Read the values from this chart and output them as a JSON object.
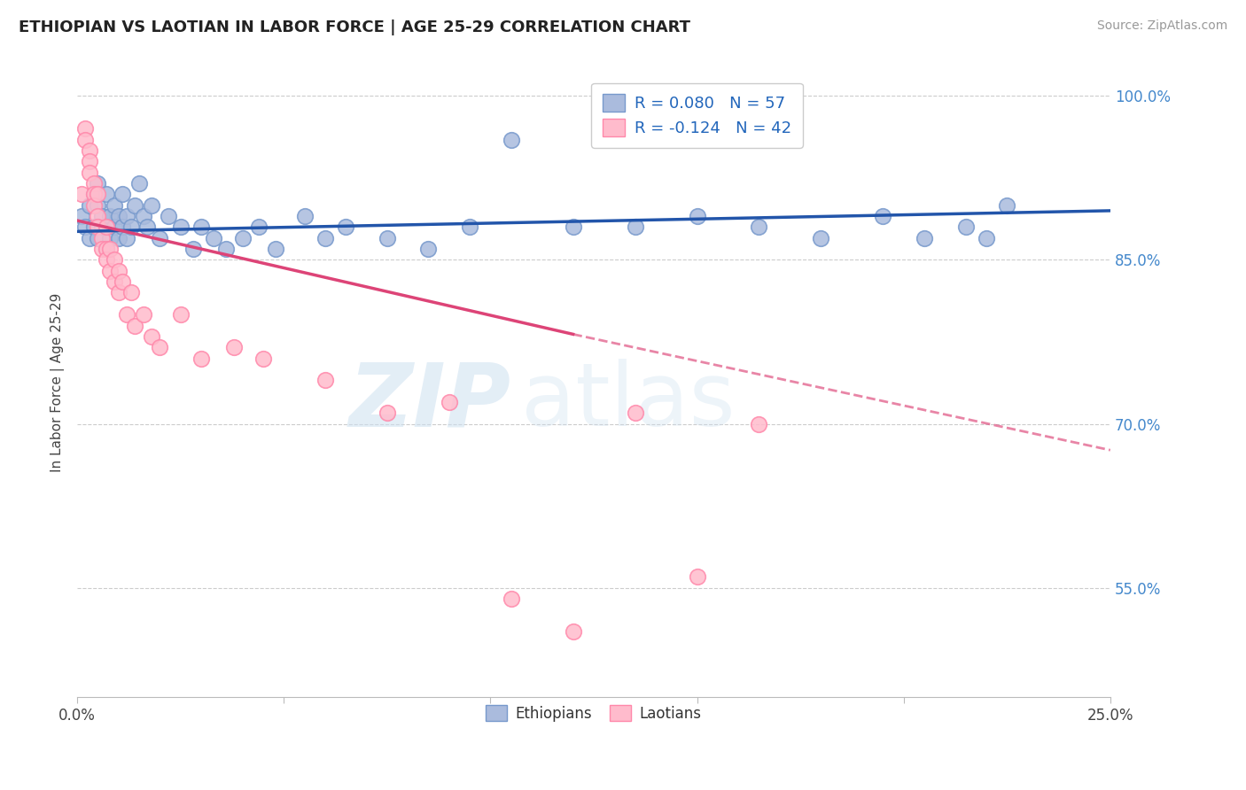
{
  "title": "ETHIOPIAN VS LAOTIAN IN LABOR FORCE | AGE 25-29 CORRELATION CHART",
  "source": "Source: ZipAtlas.com",
  "ylabel": "In Labor Force | Age 25-29",
  "xlim": [
    0.0,
    0.25
  ],
  "ylim": [
    0.45,
    1.025
  ],
  "ytick_positions": [
    1.0,
    0.85,
    0.7,
    0.55
  ],
  "ytick_labels": [
    "100.0%",
    "85.0%",
    "70.0%",
    "55.0%"
  ],
  "blue_color": "#aabbdd",
  "blue_edge_color": "#7799cc",
  "pink_color": "#ffbbcc",
  "pink_edge_color": "#ff88aa",
  "trendline_blue": "#2255aa",
  "trendline_pink": "#dd4477",
  "legend_blue_text": "R = 0.080   N = 57",
  "legend_pink_text": "R = -0.124   N = 42",
  "watermark_zip": "ZIP",
  "watermark_atlas": "atlas",
  "blue_trend_x0": 0.0,
  "blue_trend_y0": 0.876,
  "blue_trend_x1": 0.25,
  "blue_trend_y1": 0.895,
  "pink_trend_x0": 0.0,
  "pink_trend_y0": 0.886,
  "pink_trend_x1_solid": 0.12,
  "pink_trend_y1_solid": 0.782,
  "pink_trend_x1_dash": 0.25,
  "pink_trend_y1_dash": 0.676,
  "blue_points_x": [
    0.001,
    0.002,
    0.003,
    0.003,
    0.004,
    0.004,
    0.005,
    0.005,
    0.005,
    0.006,
    0.006,
    0.007,
    0.007,
    0.007,
    0.008,
    0.008,
    0.009,
    0.009,
    0.01,
    0.01,
    0.011,
    0.011,
    0.012,
    0.012,
    0.013,
    0.014,
    0.015,
    0.016,
    0.017,
    0.018,
    0.02,
    0.022,
    0.025,
    0.028,
    0.03,
    0.033,
    0.036,
    0.04,
    0.044,
    0.048,
    0.055,
    0.06,
    0.065,
    0.075,
    0.085,
    0.095,
    0.105,
    0.12,
    0.135,
    0.15,
    0.165,
    0.18,
    0.195,
    0.205,
    0.215,
    0.22,
    0.225
  ],
  "blue_points_y": [
    0.89,
    0.88,
    0.9,
    0.87,
    0.91,
    0.88,
    0.87,
    0.9,
    0.92,
    0.88,
    0.89,
    0.86,
    0.88,
    0.91,
    0.87,
    0.89,
    0.88,
    0.9,
    0.87,
    0.89,
    0.88,
    0.91,
    0.87,
    0.89,
    0.88,
    0.9,
    0.92,
    0.89,
    0.88,
    0.9,
    0.87,
    0.89,
    0.88,
    0.86,
    0.88,
    0.87,
    0.86,
    0.87,
    0.88,
    0.86,
    0.89,
    0.87,
    0.88,
    0.87,
    0.86,
    0.88,
    0.96,
    0.88,
    0.88,
    0.89,
    0.88,
    0.87,
    0.89,
    0.87,
    0.88,
    0.87,
    0.9
  ],
  "pink_points_x": [
    0.001,
    0.002,
    0.002,
    0.003,
    0.003,
    0.003,
    0.004,
    0.004,
    0.004,
    0.005,
    0.005,
    0.005,
    0.006,
    0.006,
    0.007,
    0.007,
    0.007,
    0.008,
    0.008,
    0.009,
    0.009,
    0.01,
    0.01,
    0.011,
    0.012,
    0.013,
    0.014,
    0.016,
    0.018,
    0.02,
    0.025,
    0.03,
    0.038,
    0.045,
    0.06,
    0.075,
    0.09,
    0.105,
    0.12,
    0.135,
    0.15,
    0.165
  ],
  "pink_points_y": [
    0.91,
    0.97,
    0.96,
    0.95,
    0.94,
    0.93,
    0.92,
    0.91,
    0.9,
    0.91,
    0.89,
    0.88,
    0.87,
    0.86,
    0.88,
    0.86,
    0.85,
    0.86,
    0.84,
    0.83,
    0.85,
    0.84,
    0.82,
    0.83,
    0.8,
    0.82,
    0.79,
    0.8,
    0.78,
    0.77,
    0.8,
    0.76,
    0.77,
    0.76,
    0.74,
    0.71,
    0.72,
    0.54,
    0.51,
    0.71,
    0.56,
    0.7
  ]
}
